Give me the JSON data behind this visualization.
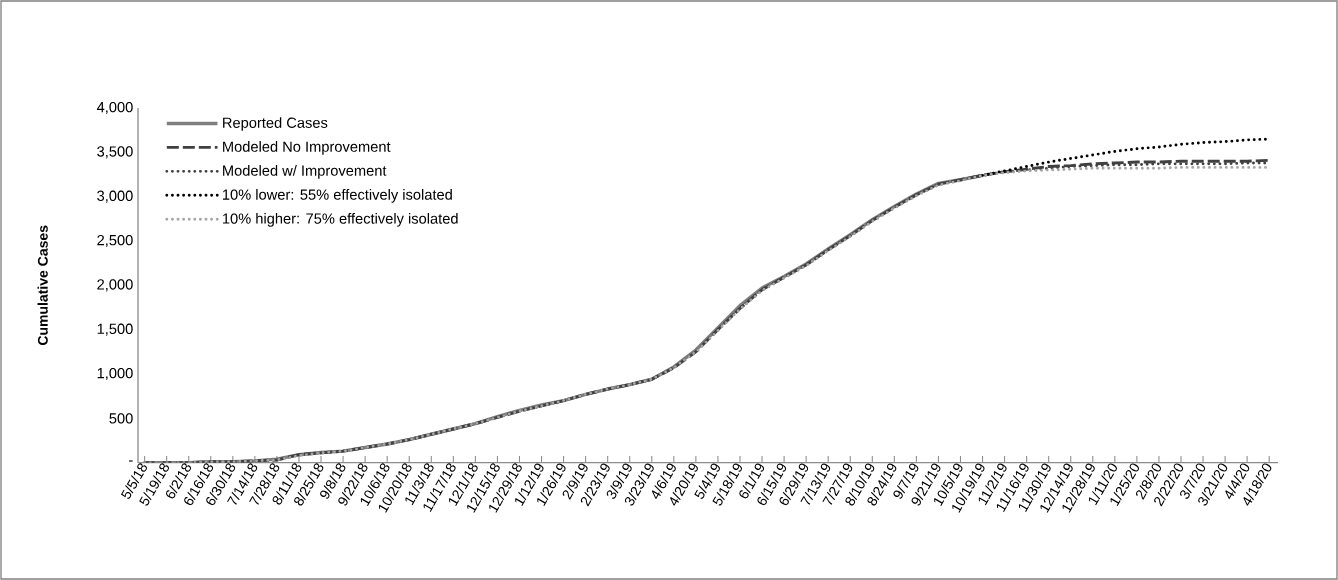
{
  "chart_data": {
    "type": "line",
    "ylabel": "Cumulative Cases",
    "categories": [
      "5/5/18",
      "5/19/18",
      "6/2/18",
      "6/16/18",
      "6/30/18",
      "7/14/18",
      "7/28/18",
      "8/11/18",
      "8/25/18",
      "9/8/18",
      "9/22/18",
      "10/6/18",
      "10/20/18",
      "11/3/18",
      "11/17/18",
      "12/1/18",
      "12/15/18",
      "12/29/18",
      "1/12/19",
      "1/26/19",
      "2/9/19",
      "2/23/19",
      "3/9/19",
      "3/23/19",
      "4/6/19",
      "4/20/19",
      "5/4/19",
      "5/18/19",
      "6/1/19",
      "6/15/19",
      "6/29/19",
      "7/13/19",
      "7/27/19",
      "8/10/19",
      "8/24/19",
      "9/7/19",
      "9/21/19",
      "10/5/19",
      "10/19/19",
      "11/2/19",
      "11/16/19",
      "11/30/19",
      "12/14/19",
      "12/28/19",
      "1/11/20",
      "1/25/20",
      "2/8/20",
      "2/22/20",
      "3/7/20",
      "3/21/20",
      "4/4/20",
      "4/18/20"
    ],
    "series": [
      {
        "name": "Reported Cases",
        "color": "#7f7f7f",
        "line_style": "solid",
        "values": [
          0,
          0,
          0,
          10,
          10,
          20,
          40,
          90,
          115,
          130,
          170,
          210,
          260,
          320,
          380,
          440,
          520,
          590,
          650,
          700,
          770,
          830,
          880,
          940,
          1080,
          1270,
          1520,
          1770,
          1970,
          2100,
          2240,
          2410,
          2570,
          2740,
          2890,
          3030,
          3150,
          3190,
          3240,
          null,
          null,
          null,
          null,
          null,
          null,
          null,
          null,
          null,
          null,
          null,
          null,
          null
        ]
      },
      {
        "name": "Modeled No Improvement",
        "color": "#404040",
        "line_style": "dashed",
        "values": [
          0,
          0,
          0,
          10,
          10,
          20,
          30,
          90,
          110,
          130,
          170,
          210,
          260,
          320,
          380,
          440,
          510,
          580,
          640,
          700,
          770,
          830,
          880,
          940,
          1070,
          1250,
          1500,
          1740,
          1950,
          2090,
          2230,
          2400,
          2560,
          2730,
          2880,
          3020,
          3140,
          3190,
          3240,
          3280,
          3310,
          3340,
          3350,
          3370,
          3380,
          3390,
          3390,
          3400,
          3400,
          3400,
          3400,
          3410
        ]
      },
      {
        "name": "Modeled w/ Improvement",
        "color": "#404040",
        "line_style": "dotted",
        "values": [
          0,
          0,
          0,
          10,
          10,
          20,
          30,
          90,
          110,
          130,
          170,
          210,
          260,
          320,
          380,
          440,
          510,
          580,
          640,
          700,
          770,
          830,
          880,
          940,
          1070,
          1250,
          1500,
          1740,
          1950,
          2090,
          2230,
          2400,
          2560,
          2730,
          2880,
          3020,
          3140,
          3190,
          3240,
          3280,
          3300,
          3320,
          3340,
          3350,
          3360,
          3360,
          3370,
          3370,
          3370,
          3370,
          3380,
          3380
        ]
      },
      {
        "name": "10% lower: 55% effectively isolated",
        "color": "#000000",
        "line_style": "dotted",
        "values": [
          null,
          null,
          null,
          null,
          null,
          null,
          null,
          null,
          null,
          null,
          null,
          null,
          null,
          null,
          null,
          null,
          null,
          null,
          null,
          null,
          null,
          null,
          null,
          null,
          null,
          null,
          null,
          null,
          null,
          null,
          null,
          null,
          null,
          null,
          null,
          null,
          null,
          null,
          3240,
          3290,
          3340,
          3390,
          3430,
          3470,
          3510,
          3540,
          3560,
          3590,
          3610,
          3620,
          3640,
          3650
        ]
      },
      {
        "name": "10% higher: 75% effectively isolated",
        "color": "#a6a6a6",
        "line_style": "dotted",
        "values": [
          0,
          0,
          0,
          10,
          10,
          20,
          30,
          80,
          110,
          130,
          170,
          210,
          260,
          320,
          380,
          440,
          510,
          580,
          640,
          700,
          770,
          830,
          880,
          940,
          1070,
          1250,
          1490,
          1730,
          1940,
          2080,
          2220,
          2390,
          2550,
          2720,
          2870,
          3010,
          3130,
          3180,
          3240,
          3270,
          3290,
          3300,
          3310,
          3320,
          3320,
          3320,
          3320,
          3330,
          3330,
          3330,
          3330,
          3330
        ]
      }
    ],
    "ylim": [
      0,
      4000
    ],
    "yticks": [
      {
        "value": 0,
        "label": "-"
      },
      500,
      {
        "value": 1000,
        "label": "1,000"
      },
      {
        "value": 1500,
        "label": "1,500"
      },
      {
        "value": 2000,
        "label": "2,000"
      },
      {
        "value": 2500,
        "label": "2,500"
      },
      {
        "value": 3000,
        "label": "3,000"
      },
      {
        "value": 3500,
        "label": "3,500"
      },
      {
        "value": 4000,
        "label": "4,000"
      }
    ],
    "grid": false,
    "legend": "top left",
    "marker": "none"
  }
}
